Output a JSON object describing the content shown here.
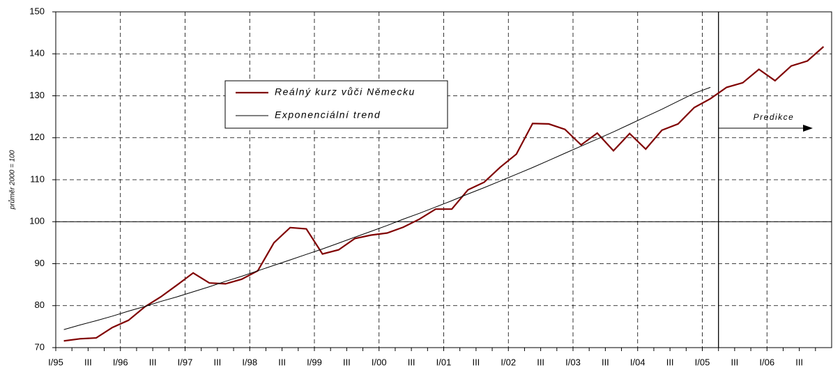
{
  "chart_data": {
    "type": "line",
    "y_axis_label": "průměr 2000 = 100",
    "categories": [
      "I/95",
      null,
      "III",
      null,
      "I/96",
      null,
      "III",
      null,
      "I/97",
      null,
      "III",
      null,
      "I/98",
      null,
      "III",
      null,
      "I/99",
      null,
      "III",
      null,
      "I/00",
      null,
      "III",
      null,
      "I/01",
      null,
      "III",
      null,
      "I/02",
      null,
      "III",
      null,
      "I/03",
      null,
      "III",
      null,
      "I/04",
      null,
      "III",
      null,
      "I/05",
      null,
      "III",
      null,
      "I/06",
      null,
      "III",
      null
    ],
    "series": [
      {
        "name": "Reálný kurz vůči Německu",
        "color": "#800000",
        "values": [
          71.6,
          72.1,
          72.3,
          74.8,
          76.5,
          79.7,
          82.1,
          84.9,
          87.8,
          85.4,
          85.2,
          86.3,
          88.3,
          95.0,
          98.6,
          98.3,
          92.3,
          93.3,
          96.0,
          96.8,
          97.3,
          98.7,
          100.6,
          103.0,
          103.0,
          107.6,
          109.4,
          113.0,
          116.1,
          123.4,
          123.3,
          122.0,
          118.3,
          121.1,
          116.9,
          121.0,
          117.3,
          121.8,
          123.3,
          127.2,
          129.3,
          132.0,
          133.1,
          136.3,
          133.6,
          137.1,
          138.3,
          141.7
        ]
      },
      {
        "name": "Exponenciální trend",
        "color": "#000000",
        "values": [
          74.3,
          75.4,
          76.4,
          77.5,
          78.7,
          79.8,
          81.0,
          82.1,
          83.3,
          84.5,
          85.8,
          87.0,
          88.3,
          89.6,
          90.9,
          92.2,
          93.5,
          94.9,
          96.3,
          97.7,
          99.1,
          100.6,
          102.0,
          103.5,
          105.0,
          106.6,
          108.1,
          109.7,
          111.3,
          112.9,
          114.6,
          116.3,
          118.0,
          119.7,
          121.4,
          123.2,
          125.0,
          126.8,
          128.7,
          130.6,
          132.0,
          null,
          null,
          null,
          null,
          null,
          null,
          null
        ]
      }
    ],
    "annotation": "Predikce",
    "reference_line": 100,
    "ylim": [
      70,
      150
    ],
    "yticks": [
      70,
      80,
      90,
      100,
      110,
      120,
      130,
      140,
      150
    ],
    "grid": true
  }
}
